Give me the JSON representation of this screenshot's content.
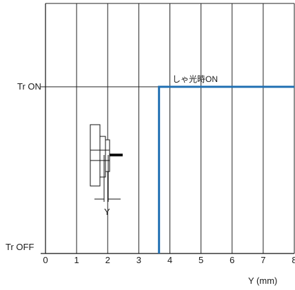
{
  "chart_data": {
    "type": "line",
    "title": "",
    "xlabel": "Y (mm)",
    "ylabel": "",
    "xlim": [
      0,
      8
    ],
    "ylim": [
      "Tr OFF",
      "Tr ON"
    ],
    "x_ticks": [
      "0",
      "1",
      "2",
      "3",
      "4",
      "5",
      "6",
      "7",
      "8"
    ],
    "y_states": [
      "Tr OFF",
      "Tr ON"
    ],
    "grid": true,
    "legend": "none",
    "series": [
      {
        "name": "しゃ光時ON",
        "color": "#1f6fb2",
        "points": [
          {
            "x": 3.65,
            "y": "Tr OFF"
          },
          {
            "x": 3.65,
            "y": "Tr ON"
          },
          {
            "x": 8.0,
            "y": "Tr ON"
          }
        ]
      }
    ],
    "annotations": [
      {
        "text": "しゃ光時ON",
        "at_x": 4.0,
        "at_y": "Tr ON"
      }
    ],
    "inset_diagram_label": "Y"
  },
  "colors": {
    "series": "#1f6fb2",
    "grid": "#222222",
    "axis": "#111111"
  }
}
